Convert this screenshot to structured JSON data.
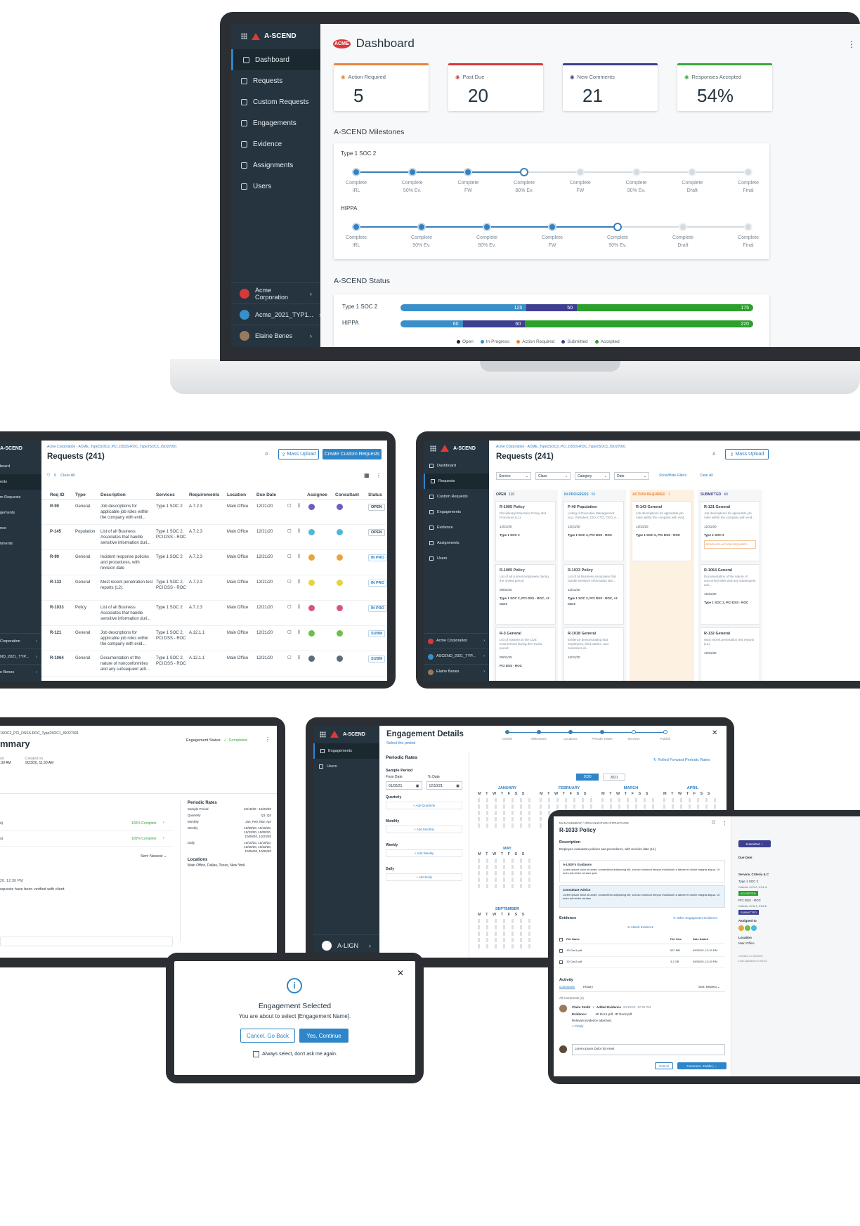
{
  "brand": "A-SCEND",
  "laptop": {
    "sidebar": [
      {
        "label": "Dashboard",
        "icon": "dashboard-icon",
        "active": true
      },
      {
        "label": "Requests",
        "icon": "list-icon"
      },
      {
        "label": "Custom Requests",
        "icon": "custom-list-icon"
      },
      {
        "label": "Engagements",
        "icon": "folder-icon"
      },
      {
        "label": "Evidence",
        "icon": "evidence-icon"
      },
      {
        "label": "Assignments",
        "icon": "assignment-icon"
      },
      {
        "label": "Users",
        "icon": "users-icon"
      }
    ],
    "accounts": [
      "Acme Corporation",
      "Acme_2021_TYP1...",
      "Elaine Benes"
    ],
    "title": "Dashboard",
    "logo_text": "ACME",
    "stats": [
      {
        "label": "Action Required",
        "value": "5",
        "color": "#e8833a",
        "icon": "warning-icon"
      },
      {
        "label": "Past Due",
        "value": "20",
        "color": "#d8383a",
        "icon": "clock-icon"
      },
      {
        "label": "New Comments",
        "value": "21",
        "color": "#3d3f8f",
        "icon": "comment-icon"
      },
      {
        "label": "Responses Accepted",
        "value": "54%",
        "color": "#3aa63a",
        "icon": "thumbs-up-icon"
      }
    ],
    "milestones_title": "A-SCEND Milestones",
    "milestones": [
      {
        "name": "Type 1 SOC 2",
        "steps": [
          {
            "top": "Complete",
            "bottom": "IRL",
            "state": "done"
          },
          {
            "top": "Complete",
            "bottom": "50% Ev.",
            "state": "done"
          },
          {
            "top": "Complete",
            "bottom": "FW",
            "state": "done"
          },
          {
            "top": "Complete",
            "bottom": "80% Ev.",
            "state": "cur"
          },
          {
            "top": "Complete",
            "bottom": "FW",
            "state": "todo"
          },
          {
            "top": "Complete",
            "bottom": "90% Ev.",
            "state": "todo"
          },
          {
            "top": "Complete",
            "bottom": "Draft",
            "state": "todo"
          },
          {
            "top": "Complete",
            "bottom": "Final",
            "state": "todo"
          }
        ]
      },
      {
        "name": "HIPPA",
        "steps": [
          {
            "top": "Complete",
            "bottom": "IRL",
            "state": "done"
          },
          {
            "top": "Complete",
            "bottom": "50% Ev.",
            "state": "done"
          },
          {
            "top": "Complete",
            "bottom": "80% Ev.",
            "state": "done"
          },
          {
            "top": "Complete",
            "bottom": "FW",
            "state": "done"
          },
          {
            "top": "Complete",
            "bottom": "90% Ev.",
            "state": "cur"
          },
          {
            "top": "Complete",
            "bottom": "Draft",
            "state": "todo"
          },
          {
            "top": "Complete",
            "bottom": "Final",
            "state": "todo"
          }
        ]
      }
    ],
    "status_title": "A-SCEND Status",
    "status": [
      {
        "name": "Type 1 SOC 2",
        "segments": [
          {
            "value": 125,
            "label": "125",
            "color": "#3a8fc8"
          },
          {
            "value": 50,
            "label": "50",
            "color": "#3d3f8f"
          },
          {
            "value": 175,
            "label": "175",
            "color": "#2ca02c"
          }
        ]
      },
      {
        "name": "HIPPA",
        "segments": [
          {
            "value": 60,
            "label": "60",
            "color": "#3a8fc8"
          },
          {
            "value": 60,
            "label": "60",
            "color": "#3d3f8f"
          },
          {
            "value": 220,
            "label": "220",
            "color": "#2ca02c"
          }
        ]
      }
    ],
    "legend": [
      {
        "label": "Open",
        "color": "#222222"
      },
      {
        "label": "In Progress",
        "color": "#3a8fc8"
      },
      {
        "label": "Action Required",
        "color": "#e8833a"
      },
      {
        "label": "Submitted",
        "color": "#3d3f8f"
      },
      {
        "label": "Accepted",
        "color": "#2ca02c"
      }
    ]
  },
  "requests_table": {
    "breadcrumb": "Acme Corporation - ACME_Type1SOC2_PCI_DSSS-ROC_Type2SOC1_ISO27001",
    "title": "Requests (241)",
    "mass_upload": "Mass Upload",
    "create": "Create Custom Requests",
    "filter_count": "0",
    "clear_all": "Clear All",
    "sidebar": [
      "board",
      "ests",
      "m Requests",
      "gements",
      "nce",
      "nments",
      ""
    ],
    "accounts": [
      "Corporation",
      "ND_2021_TYP...",
      "e Benes"
    ],
    "columns": [
      "Req ID",
      "Type",
      "Description",
      "Services",
      "Requirements",
      "Location",
      "Due Date",
      "",
      "",
      "Assignee",
      "Consultant",
      "Status"
    ],
    "rows": [
      {
        "id": "R-90",
        "type": "General",
        "desc": "Job descriptions for applicable job roles within the company with evid...",
        "svc": "Type 1 SOC 2",
        "req": "A.7.2.3",
        "loc": "Main Office",
        "due": "12/21/20",
        "status": "OPEN",
        "av": "#6d5cc4"
      },
      {
        "id": "P-145",
        "type": "Population",
        "desc": "List of all Business Associates that handle sensitive information duri...",
        "svc": "Type 1 SOC 2, PCI DSS - ROC",
        "req": "A.7.2.3",
        "loc": "Main Office",
        "due": "12/21/20",
        "status": "OPEN",
        "av": "#4bb8e0"
      },
      {
        "id": "R-90",
        "type": "General",
        "desc": "Incident response policies and procedures, with revision date",
        "svc": "Type 1 SOC 2",
        "req": "A.7.2.3",
        "loc": "Main Office",
        "due": "12/21/20",
        "status": "IN PRO",
        "av": "#e8a43a"
      },
      {
        "id": "R-132",
        "type": "General",
        "desc": "Most recent penetration test reports (L2).",
        "svc": "Type 1 SOC 2, PCI DSS - ROC",
        "req": "A.7.2.3",
        "loc": "Main Office",
        "due": "12/21/20",
        "status": "IN PRO",
        "av": "#e8d43a"
      },
      {
        "id": "R-1033",
        "type": "Policy",
        "desc": "List of all Business Associates that handle sensitive information duri...",
        "svc": "Type 1 SOC 2",
        "req": "A.7.2.3",
        "loc": "Main Office",
        "due": "12/21/20",
        "status": "IN PRO",
        "av": "#d8547a"
      },
      {
        "id": "R-121",
        "type": "General",
        "desc": "Job descriptions for applicable job roles within the company with evid...",
        "svc": "Type 1 SOC 2, PCI DSS - ROC",
        "req": "A.12.1.1",
        "loc": "Main Office",
        "due": "12/21/20",
        "status": "SUBM",
        "av": "#6cc04a"
      },
      {
        "id": "R-1064",
        "type": "General",
        "desc": "Documentation of the nature of nonconformities and any subsequent acti...",
        "svc": "Type 1 SOC 2, PCI DSS - ROC",
        "req": "A.12.1.1",
        "loc": "Main Office",
        "due": "12/21/20",
        "status": "SUBM",
        "av": "#5a6e7a"
      }
    ]
  },
  "requests_board": {
    "breadcrumb": "Acme Corporation - ACME_Type1SOC2_PCI_DSSS-ROC_Type2SOC1_ISO27001",
    "title": "Requests (241)",
    "mass_upload": "Mass Upload",
    "filters": [
      "Service",
      "Class",
      "Category",
      "Date"
    ],
    "show_hide": "Show/Hide Filters",
    "clear_all": "Clear All",
    "sidebar": [
      "Dashboard",
      "Requests",
      "Custom Requests",
      "Engagements",
      "Evidence",
      "Assignments",
      "Users"
    ],
    "accounts": [
      "Acme Corporation",
      "ASCEND_2021_TYP...",
      "Elaine Benes"
    ],
    "columns": [
      {
        "name": "OPEN",
        "count": "110",
        "color": "#33414c",
        "cards": [
          {
            "id": "R-1005 Policy",
            "desc": "Disciplinary/Sanctions Policy and Procedure (L1)",
            "date": "12/21/20",
            "svc": "Type 1 SOC 2"
          },
          {
            "id": "R-1005 Policy",
            "desc": "List of all current employees during the review period",
            "date": "09/01/20",
            "svc": "Type 1 SOC 2, PCI DSS - ROC, +2 more"
          },
          {
            "id": "R-3 General",
            "desc": "List of systems in the CDE environment during the review period",
            "date": "09/01/20",
            "svc": "PCI DSS - ROC"
          }
        ]
      },
      {
        "name": "IN PROGRESS",
        "count": "60",
        "color": "#3a8fc8",
        "cards": [
          {
            "id": "P-40 Population",
            "desc": "Listing of Executive Management (e.g. President, CIO, CTO, CEO, e...",
            "date": "12/21/20",
            "svc": "Type 1 SOC 2, PCI DSS - ROC"
          },
          {
            "id": "R-1033 Policy",
            "desc": "List of all Business Associates that handle sensitive information duri...",
            "date": "12/21/20",
            "svc": "Type 1 SOC 2, PCI DSS - ROC, +2 more"
          },
          {
            "id": "R-1018 General",
            "desc": "Evidence demonstrating that employees, third parties, and customers ar...",
            "date": "12/21/20",
            "svc": ""
          }
        ]
      },
      {
        "name": "ACTION REQUIRED",
        "count": "1",
        "color": "#e8833a",
        "cards": [
          {
            "id": "R-143 General",
            "desc": "Job descriptions for applicable job roles within the company with evid...",
            "date": "12/21/20",
            "svc": "Type 1 SOC 2, PCI DSS - ROC"
          }
        ]
      },
      {
        "name": "SUBMITTED",
        "count": "40",
        "color": "#3d3f8f",
        "cards": [
          {
            "id": "R-121 General",
            "desc": "Job descriptions for applicable job roles within the company with evid...",
            "date": "12/21/20",
            "svc": "Type 1 SOC 2",
            "tag": "RESOLVED ACTION REQUIRED"
          },
          {
            "id": "R-1064 General",
            "desc": "Documentation of the nature of nonconformities and any subsequent acti...",
            "date": "12/21/20",
            "svc": "Type 1 SOC 2, PCI DSS - ROC"
          },
          {
            "id": "R-132 General",
            "desc": "Most recent penetration test reports (L2).",
            "date": "12/21/20",
            "svc": ""
          }
        ]
      }
    ]
  },
  "summary": {
    "breadcrumb": "1SOC2_PCI_DSSS-ROC_Type2SOC1_ISO27001",
    "title": "mmary",
    "status_label": "Engagement Status:",
    "status_value": "Completed",
    "fields": [
      {
        "label": "on",
        "value": ":30 AM"
      },
      {
        "label": "Created on",
        "value": "9/23/20, 11:30 AM"
      }
    ],
    "rows": [
      {
        "left": "s)",
        "right": "100% Complete"
      },
      {
        "left": "s)",
        "right": "100% Complete"
      }
    ],
    "sort": "Sort: Newest",
    "activity_time": "20, 12:30 PM",
    "activity_text": "equests have been verified with client.",
    "periodic_title": "Periodic Rates",
    "periodic": [
      {
        "k": "Sample Period",
        "v": "10/19/20 - 12/23/20"
      },
      {
        "k": "Quarterly",
        "v": "Q1, Q2"
      },
      {
        "k": "Monthly",
        "v": "Jan, Feb, Mar, Apr"
      },
      {
        "k": "Weekly",
        "v": "10/09/20, 10/16/20, 10/23/20, 10/00/20, 10/09/20, 10/23/20"
      },
      {
        "k": "Daily",
        "v": "10/10/20, 10/19/20, 10/20/20, 10/22/20, 10/06/20, 10/06/20"
      }
    ],
    "locations_title": "Locations",
    "locations": "Main Office, Dallas, Texas, New York"
  },
  "engagement": {
    "title": "Engagement Details",
    "subtitle": "Select the period",
    "steps": [
      "Details",
      "Milestones",
      "Locations",
      "Periodic Rates",
      "Services",
      "Publish"
    ],
    "sidebar": [
      "Engagements",
      "Users"
    ],
    "account": "A-LIGN",
    "section": "Periodic Rates",
    "sample_period": "Sample Period",
    "from": "From Date",
    "to": "To Date",
    "from_val": "01/02/21",
    "to_val": "12/10/21",
    "groups": [
      {
        "label": "Quarterly",
        "add": "Add Quarterly"
      },
      {
        "label": "Monthly",
        "add": "Add Monthly"
      },
      {
        "label": "Weekly",
        "add": "Add Weekly"
      },
      {
        "label": "Daily",
        "add": "Add Daily"
      }
    ],
    "rolled": "Rolled Forward Periodic Rates",
    "years": [
      "2020",
      "2021"
    ],
    "months": [
      "JANUARY",
      "FEBRUARY",
      "MARCH",
      "APRIL",
      "MAY",
      "SEPTEMBER"
    ],
    "weekdays": "M T W T F S S"
  },
  "modal": {
    "title": "Engagement Selected",
    "text": "You are about to select [Engagement Name].",
    "cancel": "Cancel, Go Back",
    "confirm": "Yes, Continue",
    "checkbox": "Always select, don't ask me again."
  },
  "policy": {
    "breadcrumb": "MANAGEMENT / ORGANIZATION STRUCTURE",
    "title": "R-1033 Policy",
    "description_label": "Description",
    "description": "Employee evaluation policies and procedures, with revision date (L1)",
    "guidance_label": "A-LIGN's Guidance",
    "guidance": "Lorem ipsum dolor sit amet, consectetur adipiscing elit, sed do eiusmod tempor incididunt ut labore et dolore magna aliqua. Ut enim ad minim veniam quis",
    "advice_label": "Consultant Advice",
    "advice": "Lorem ipsum dolor sit amet, consectetur adipiscing elit, sed do eiusmod tempor incididunt ut labore et dolore magna aliqua. Ut enim ad minim veniam",
    "evidence_label": "Evidence",
    "other_evidence": "Other Engagement Evidence",
    "attach": "Attach Evidence",
    "file_cols": [
      "File Name",
      "File Size",
      "Date Added"
    ],
    "files": [
      {
        "name": "JD Doc1.pdf",
        "size": "537 MB",
        "date": "09/30/20, 12:30 PM"
      },
      {
        "name": "JD Doc2.pdf",
        "size": "3.2 GB",
        "date": "09/30/20, 12:30 PM"
      }
    ],
    "activity_label": "Activity",
    "tabs": [
      "Comments",
      "History"
    ],
    "sort": "Sort: Newest",
    "all_comments": "All Comments (1)",
    "commenter": "Claire Smith",
    "action": "Added Evidence",
    "comment_time": "20/10/20, 12:35 PM",
    "evidence_key": "Evidence:",
    "evidence_val": "JD Doc1.pdf, JD Doc2.pdf",
    "comment": "Relevant evidence attached.",
    "reply": "Reply",
    "input_placeholder": "Lorem Ipsum Dolor Sit Amet",
    "cancel": "Cancel",
    "submit": "Comment - Public",
    "side": {
      "status": "Submitted",
      "due_label": "Due Date",
      "services_label": "Service, Criteria & C",
      "svc1": "Type 1 SOC 2",
      "crit1": "Criteria: CC1.2, CC1.3,",
      "accepted": "ACCEPTED",
      "svc2": "PCI DSS - ROC",
      "crit2": "Criteria: CC6.1, CC6.5",
      "submitted": "SUBMITTED",
      "assigned": "Assigned to",
      "location_label": "Location",
      "location": "Main Office",
      "created": "Created on 9/23/20,",
      "updated": "Last updated on 9/23/2"
    }
  }
}
